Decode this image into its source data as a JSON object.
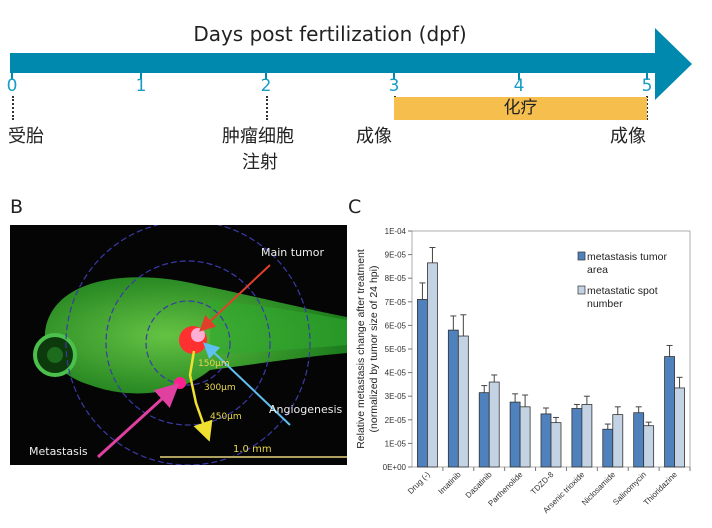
{
  "timeline": {
    "title": "Days post fertilization (dpf)",
    "ticks": [
      "0",
      "1",
      "2",
      "3",
      "4",
      "5"
    ],
    "color": "#0089ae",
    "chemo_label": "化疗",
    "chemo_color": "#f6be4d",
    "events": {
      "fertilization": "受胎",
      "injection_line1": "肿瘤细胞",
      "injection_line2": "注射",
      "imaging_start": "成像",
      "imaging_end": "成像"
    }
  },
  "panel_b": {
    "letter": "B",
    "labels": {
      "main_tumor": "Main tumor",
      "angiogenesis": "Angiogenesis",
      "metastasis": "Metastasis",
      "d150": "150µm",
      "d300": "300µm",
      "d450": "450µm",
      "scale": "1.0 mm"
    }
  },
  "panel_c": {
    "letter": "C"
  },
  "chart_data": {
    "type": "bar",
    "categories": [
      "Drug (-)",
      "Imatinib",
      "Dasatinib",
      "Parthenolide",
      "TDZD-8",
      "Arsenic trioxide",
      "Niclosamide",
      "Salinomycin",
      "Thioridazine"
    ],
    "series": [
      {
        "name": "metastasis tumor area",
        "color": "#4f81bd",
        "values": [
          7.1e-05,
          5.8e-05,
          3.15e-05,
          2.75e-05,
          2.25e-05,
          2.48e-05,
          1.6e-05,
          2.3e-05,
          4.68e-05
        ],
        "error_upper": [
          7.8e-05,
          6.4e-05,
          3.45e-05,
          3.1e-05,
          2.5e-05,
          2.65e-05,
          1.82e-05,
          2.55e-05,
          5.15e-05
        ]
      },
      {
        "name": "metastatic spot number",
        "color": "#c3d3e4",
        "values": [
          8.65e-05,
          5.55e-05,
          3.6e-05,
          2.55e-05,
          1.88e-05,
          2.65e-05,
          2.22e-05,
          1.75e-05,
          3.35e-05
        ],
        "error_upper": [
          9.3e-05,
          6.45e-05,
          3.9e-05,
          3.05e-05,
          2.1e-05,
          3e-05,
          2.55e-05,
          1.9e-05,
          3.8e-05
        ]
      }
    ],
    "legend_lines": [
      [
        "metastasis tumor",
        "area"
      ],
      [
        "metastatic spot",
        "number"
      ]
    ],
    "ylabel_line1": "Relative metastasis change after treatment",
    "ylabel_line2": "(normalized by tumor size of 24 hpi)",
    "yticks": [
      "0E+00",
      "1E-05",
      "2E-05",
      "3E-05",
      "4E-05",
      "5E-05",
      "6E-05",
      "7E-05",
      "8E-05",
      "9E-05",
      "1E-04"
    ],
    "ylim": [
      0,
      0.0001
    ],
    "legend_position": "top-right",
    "grid": false
  }
}
